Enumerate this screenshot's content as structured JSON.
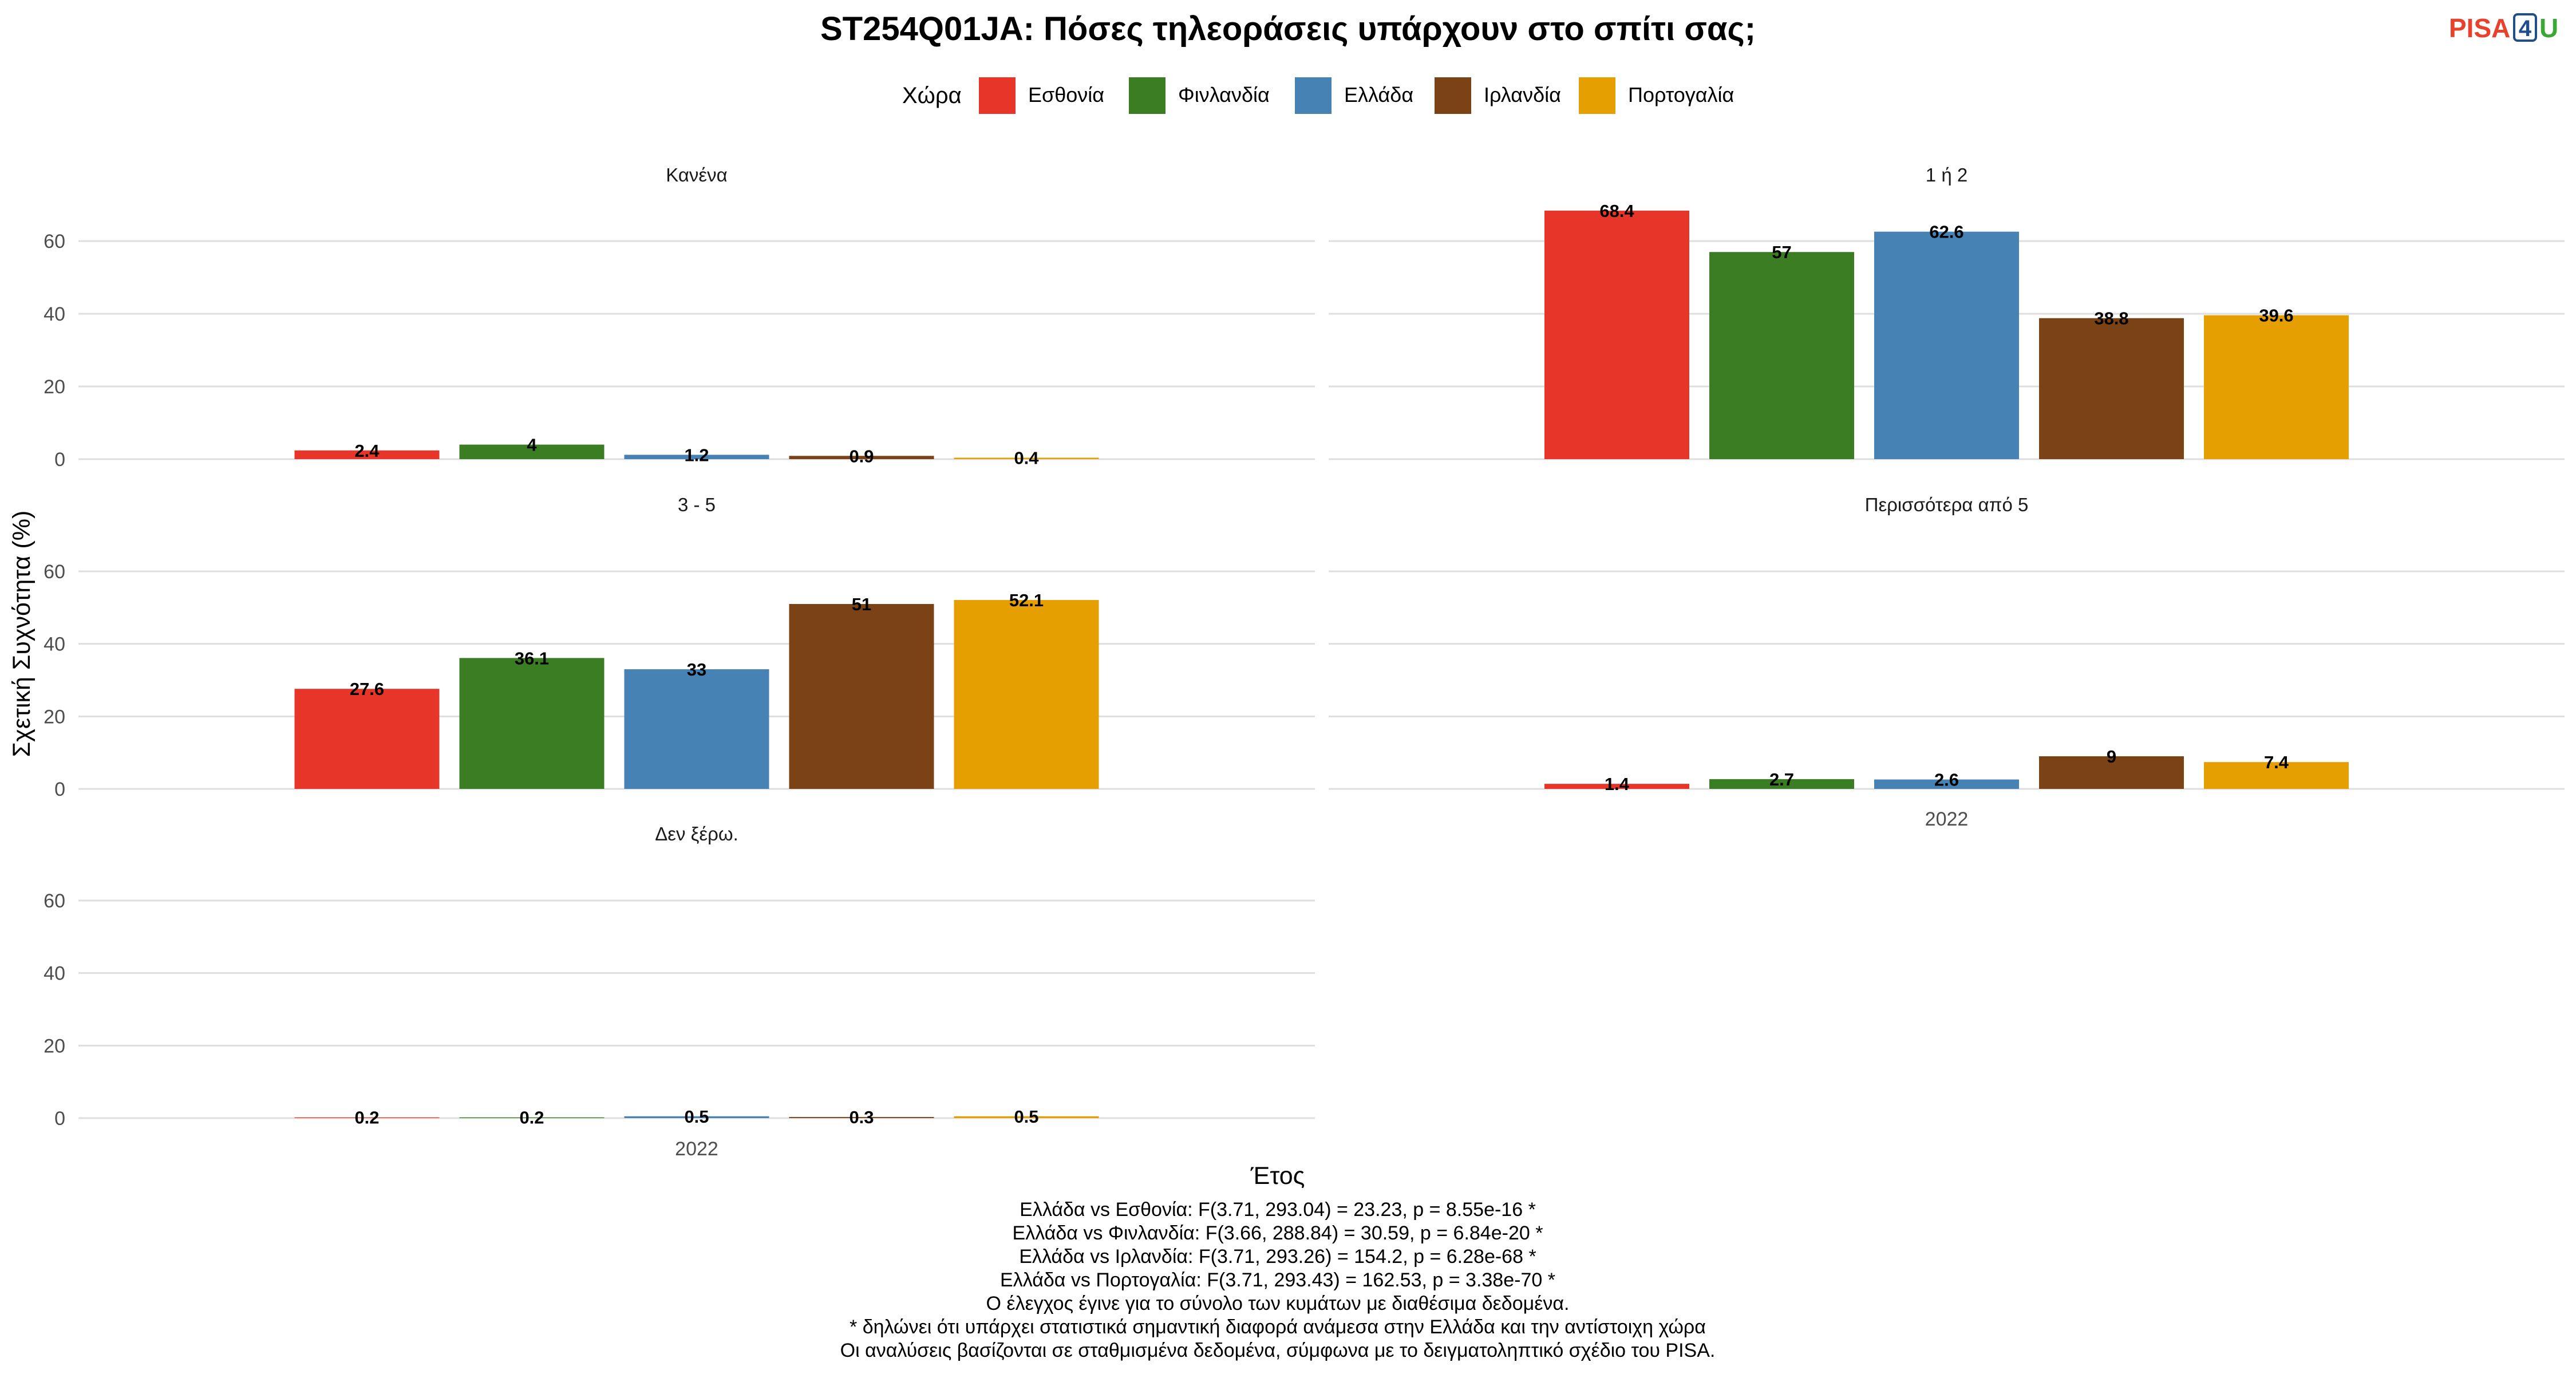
{
  "title": "ST254Q01JA: Πόσες τηλεοράσεις υπάρχουν στο σπίτι σας;",
  "logo": {
    "part1": "PISA",
    "part2": "4",
    "part3": "U"
  },
  "legend": {
    "title": "Χώρα",
    "items": [
      {
        "label": "Εσθονία",
        "color": "#e8352a"
      },
      {
        "label": "Φινλανδία",
        "color": "#3a7d22"
      },
      {
        "label": "Ελλάδα",
        "color": "#4682b4"
      },
      {
        "label": "Ιρλανδία",
        "color": "#7a4215"
      },
      {
        "label": "Πορτογαλία",
        "color": "#e69f00"
      }
    ]
  },
  "axes": {
    "ylabel": "Σχετική Συχνότητα (%)",
    "xlabel": "Έτος"
  },
  "chart_data": {
    "type": "bar",
    "facet_by": "response",
    "x": [
      "2022"
    ],
    "ylim": [
      0,
      72
    ],
    "yticks": [
      0,
      20,
      40,
      60
    ],
    "grid": true,
    "legend_position": "top",
    "series_names": [
      "Εσθονία",
      "Φινλανδία",
      "Ελλάδα",
      "Ιρλανδία",
      "Πορτογαλία"
    ],
    "facets": [
      {
        "label": "Κανένα",
        "values": [
          2.4,
          4,
          1.2,
          0.9,
          0.4
        ],
        "labels": [
          "2.4",
          "4",
          "1.2",
          "0.9",
          "0.4"
        ]
      },
      {
        "label": "1 ή 2",
        "values": [
          68.4,
          57,
          62.6,
          38.8,
          39.6
        ],
        "labels": [
          "68.4",
          "57",
          "62.6",
          "38.8",
          "39.6"
        ]
      },
      {
        "label": "3 - 5",
        "values": [
          27.6,
          36.1,
          33,
          51,
          52.1
        ],
        "labels": [
          "27.6",
          "36.1",
          "33",
          "51",
          "52.1"
        ]
      },
      {
        "label": "Περισσότερα από 5",
        "values": [
          1.4,
          2.7,
          2.6,
          9,
          7.4
        ],
        "labels": [
          "1.4",
          "2.7",
          "2.6",
          "9",
          "7.4"
        ]
      },
      {
        "label": "Δεν ξέρω.",
        "values": [
          0.2,
          0.2,
          0.5,
          0.3,
          0.5
        ],
        "labels": [
          "0.2",
          "0.2",
          "0.5",
          "0.3",
          "0.5"
        ]
      }
    ]
  },
  "caption": [
    "Ελλάδα vs Εσθονία: F(3.71, 293.04) = 23.23, p = 8.55e-16 *",
    "Ελλάδα vs Φινλανδία: F(3.66, 288.84) = 30.59, p = 6.84e-20 *",
    "Ελλάδα vs Ιρλανδία: F(3.71, 293.26) = 154.2, p = 6.28e-68 *",
    "Ελλάδα vs Πορτογαλία: F(3.71, 293.43) = 162.53, p = 3.38e-70 *",
    "Ο έλεγχος έγινε για το σύνολο των κυμάτων με διαθέσιμα δεδομένα.",
    "* δηλώνει ότι υπάρχει στατιστικά σημαντική διαφορά ανάμεσα στην Ελλάδα και την αντίστοιχη χώρα",
    "Οι αναλύσεις βασίζονται σε σταθμισμένα δεδομένα, σύμφωνα με το δειγματοληπτικό σχέδιο του PISA."
  ]
}
